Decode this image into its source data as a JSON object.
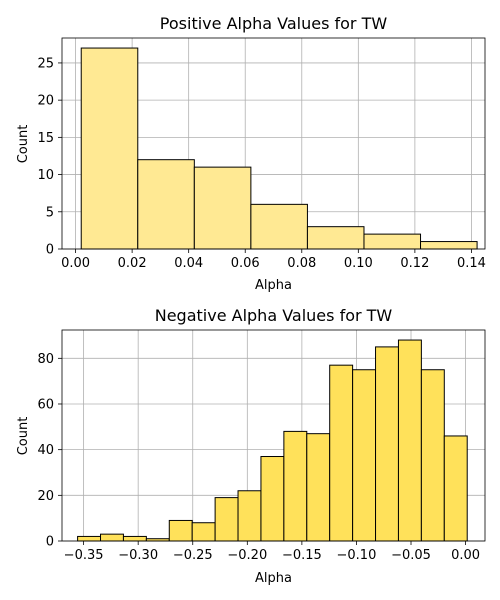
{
  "figure": {
    "background": "#ffffff"
  },
  "chart_data": [
    {
      "type": "bar",
      "title": "Positive Alpha Values for TW",
      "xlabel": "Alpha",
      "ylabel": "Count",
      "bar_color": "#ffe993",
      "edge_color": "#000000",
      "grid": true,
      "xlim": [
        -0.0048,
        0.1448
      ],
      "ylim": [
        0,
        28.35
      ],
      "xticks": [
        0.0,
        0.02,
        0.04,
        0.06,
        0.08,
        0.1,
        0.12,
        0.14
      ],
      "xtick_labels": [
        "0.00",
        "0.02",
        "0.04",
        "0.06",
        "0.08",
        "0.10",
        "0.12",
        "0.14"
      ],
      "yticks": [
        0,
        5,
        10,
        15,
        20,
        25
      ],
      "ytick_labels": [
        "0",
        "5",
        "10",
        "15",
        "20",
        "25"
      ],
      "bins": [
        {
          "x0": 0.002,
          "x1": 0.022,
          "count": 27
        },
        {
          "x0": 0.022,
          "x1": 0.042,
          "count": 12
        },
        {
          "x0": 0.042,
          "x1": 0.062,
          "count": 11
        },
        {
          "x0": 0.062,
          "x1": 0.082,
          "count": 6
        },
        {
          "x0": 0.082,
          "x1": 0.102,
          "count": 3
        },
        {
          "x0": 0.102,
          "x1": 0.122,
          "count": 2
        },
        {
          "x0": 0.122,
          "x1": 0.142,
          "count": 1
        }
      ]
    },
    {
      "type": "bar",
      "title": "Negative Alpha Values for TW",
      "xlabel": "Alpha",
      "ylabel": "Count",
      "bar_color": "#ffe15a",
      "edge_color": "#000000",
      "grid": true,
      "xlim": [
        -0.3698,
        0.0178
      ],
      "ylim": [
        0,
        92.4
      ],
      "xticks": [
        -0.35,
        -0.3,
        -0.25,
        -0.2,
        -0.15,
        -0.1,
        -0.05,
        0.0
      ],
      "xtick_labels": [
        "−0.35",
        "−0.30",
        "−0.25",
        "−0.20",
        "−0.15",
        "−0.10",
        "−0.05",
        "0.00"
      ],
      "yticks": [
        0,
        20,
        40,
        60,
        80
      ],
      "ytick_labels": [
        "0",
        "20",
        "40",
        "60",
        "80"
      ],
      "bins": [
        {
          "x0": -0.3555,
          "x1": -0.3345,
          "count": 2
        },
        {
          "x0": -0.3345,
          "x1": -0.3135,
          "count": 3
        },
        {
          "x0": -0.3135,
          "x1": -0.2925,
          "count": 2
        },
        {
          "x0": -0.2925,
          "x1": -0.2715,
          "count": 1
        },
        {
          "x0": -0.2715,
          "x1": -0.2505,
          "count": 9
        },
        {
          "x0": -0.2505,
          "x1": -0.2295,
          "count": 8
        },
        {
          "x0": -0.2295,
          "x1": -0.2085,
          "count": 19
        },
        {
          "x0": -0.2085,
          "x1": -0.1875,
          "count": 22
        },
        {
          "x0": -0.1875,
          "x1": -0.1665,
          "count": 37
        },
        {
          "x0": -0.1665,
          "x1": -0.1455,
          "count": 48
        },
        {
          "x0": -0.1455,
          "x1": -0.1245,
          "count": 47
        },
        {
          "x0": -0.1245,
          "x1": -0.1035,
          "count": 77
        },
        {
          "x0": -0.1035,
          "x1": -0.0825,
          "count": 75
        },
        {
          "x0": -0.0825,
          "x1": -0.0615,
          "count": 85
        },
        {
          "x0": -0.0615,
          "x1": -0.0405,
          "count": 88
        },
        {
          "x0": -0.0405,
          "x1": -0.0195,
          "count": 75
        },
        {
          "x0": -0.0195,
          "x1": 0.0015,
          "count": 46
        }
      ]
    }
  ]
}
